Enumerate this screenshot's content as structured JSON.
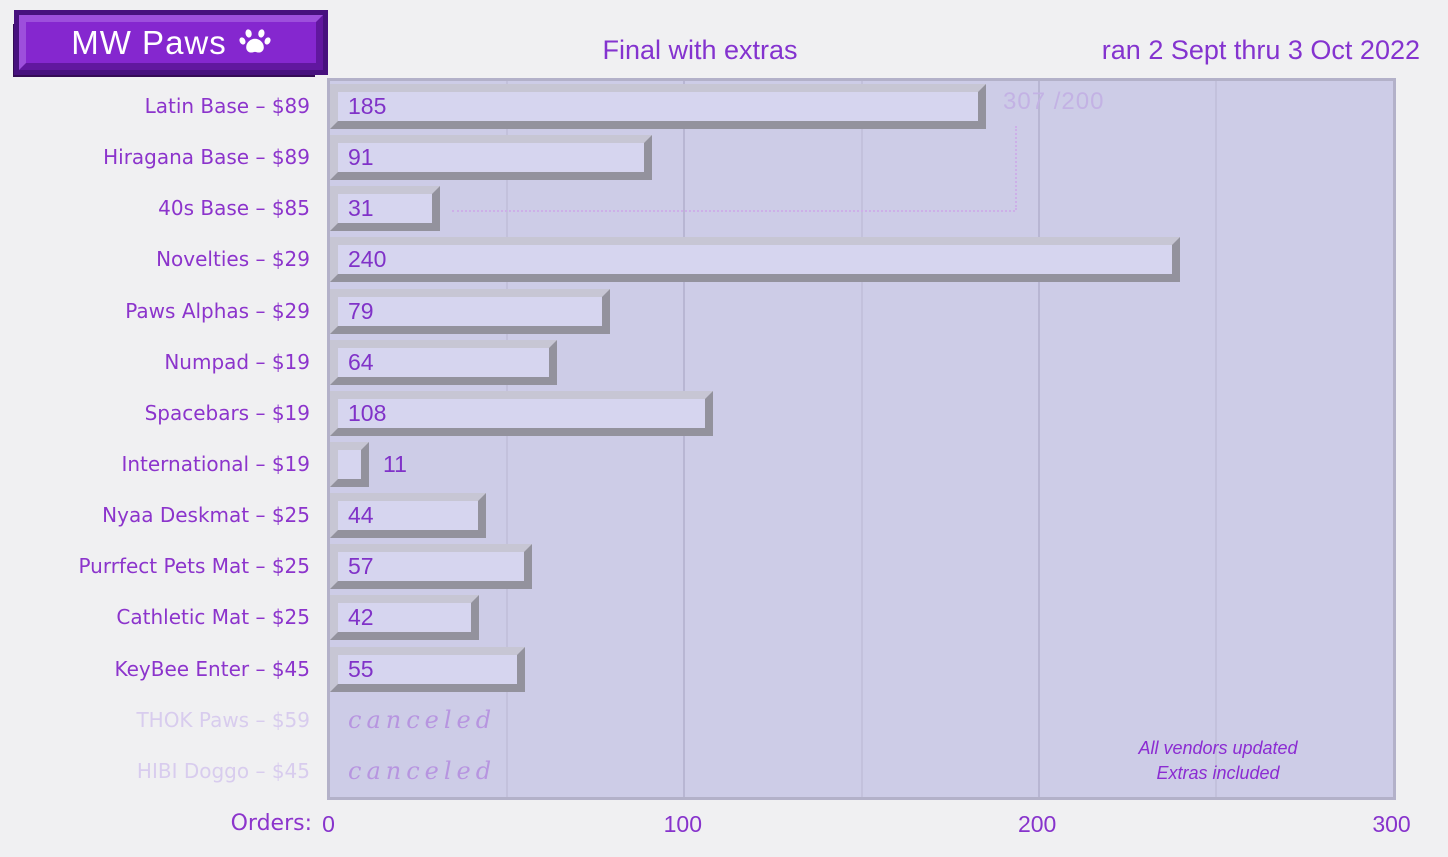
{
  "page": {
    "logo_text": "MW Paws",
    "logo_icon": "paw-icon",
    "center_title": "Final with extras",
    "right_title": "ran 2 Sept thru 3 Oct 2022"
  },
  "colors": {
    "accent_purple": "#8433cf",
    "logo_fill": "#8527cf",
    "logo_frame": "#47117e",
    "plot_background": "#cdcce7",
    "bar_fill": "#d6d5ef",
    "bar_bevel_light": "#c7c6d4",
    "bar_bevel_dark": "#93929d",
    "faded_text": "#d8ccee",
    "canceled_text": "#b795e0",
    "annotation_text": "#c3b2e4"
  },
  "chart_data": {
    "type": "bar",
    "orientation": "horizontal",
    "title": "Final with extras",
    "subtitle": "ran 2 Sept thru 3 Oct 2022",
    "xlabel": "Orders:",
    "xlim": [
      0,
      300
    ],
    "x_ticks": [
      0,
      100,
      200,
      300
    ],
    "gridline_interval": 50,
    "legend": "none",
    "categories": [
      "Latin Base – $89",
      "Hiragana Base – $89",
      "40s Base – $85",
      "Novelties – $29",
      "Paws Alphas – $29",
      "Numpad – $19",
      "Spacebars – $19",
      "International – $19",
      "Nyaa Deskmat – $25",
      "Purrfect Pets Mat – $25",
      "Cathletic Mat – $25",
      "KeyBee Enter – $45",
      "THOK Paws – $59",
      "HIBI Doggo – $45"
    ],
    "values": [
      185,
      91,
      31,
      240,
      79,
      64,
      108,
      11,
      44,
      57,
      42,
      55,
      null,
      null
    ],
    "canceled_text": "canceled",
    "annotation": {
      "text": "307 /200",
      "attached_to": "base kits group (Latin, Hiragana, 40s)"
    },
    "footnotes": [
      "All vendors updated",
      "Extras included"
    ]
  }
}
